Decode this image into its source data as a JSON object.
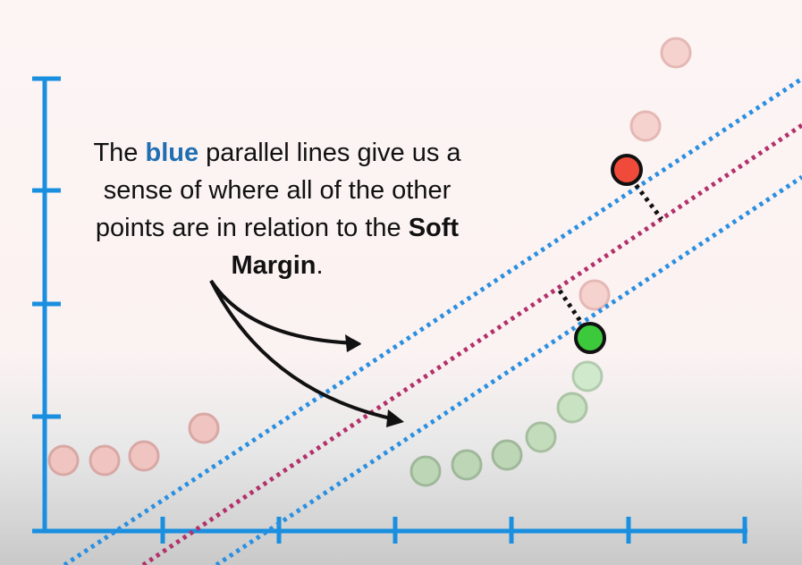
{
  "caption": {
    "part1": "The ",
    "blue_word": "blue",
    "part2": " parallel lines give us a sense of where all of the other points are in relation to the ",
    "bold_phrase": "Soft Margin",
    "part3": "."
  },
  "colors": {
    "axis": "#1a8fe0",
    "margin_line": "#2a8fe0",
    "center_line": "#b3316a",
    "highlight_red": "#f04a3a",
    "highlight_green": "#3cc93c",
    "faded_red": "#f0c4c0",
    "faded_green": "#c8e4c4",
    "emphasis_blue": "#1f6fb2"
  },
  "icons": [
    "arrow-icon",
    "arrow-icon"
  ]
}
